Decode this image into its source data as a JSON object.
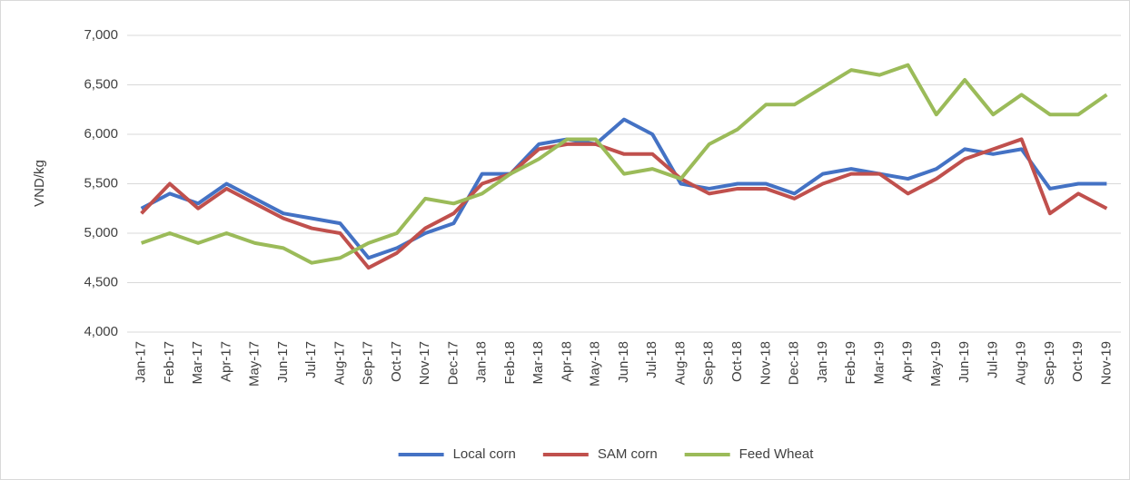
{
  "chart_data": {
    "type": "line",
    "y_label": "VND/kg",
    "categories": [
      "Jan-17",
      "Feb-17",
      "Mar-17",
      "Apr-17",
      "May-17",
      "Jun-17",
      "Jul-17",
      "Aug-17",
      "Sep-17",
      "Oct-17",
      "Nov-17",
      "Dec-17",
      "Jan-18",
      "Feb-18",
      "Mar-18",
      "Apr-18",
      "May-18",
      "Jun-18",
      "Jul-18",
      "Aug-18",
      "Sep-18",
      "Oct-18",
      "Nov-18",
      "Dec-18",
      "Jan-19",
      "Feb-19",
      "Mar-19",
      "Apr-19",
      "May-19",
      "Jun-19",
      "Jul-19",
      "Aug-19",
      "Sep-19",
      "Oct-19",
      "Nov-19"
    ],
    "series": [
      {
        "name": "Local corn",
        "color": "#4472c4",
        "values": [
          5250,
          5400,
          5300,
          5500,
          5350,
          5200,
          5150,
          5100,
          4750,
          4850,
          5000,
          5100,
          5600,
          5600,
          5900,
          5950,
          5900,
          6150,
          6000,
          5500,
          5450,
          5500,
          5500,
          5400,
          5600,
          5650,
          5600,
          5550,
          5650,
          5850,
          5800,
          5850,
          5450,
          5500,
          5500
        ]
      },
      {
        "name": "SAM corn",
        "color": "#c0504d",
        "values": [
          5200,
          5500,
          5250,
          5450,
          5300,
          5150,
          5050,
          5000,
          4650,
          4800,
          5050,
          5200,
          5500,
          5600,
          5850,
          5900,
          5900,
          5800,
          5800,
          5550,
          5400,
          5450,
          5450,
          5350,
          5500,
          5600,
          5600,
          5400,
          5550,
          5750,
          5850,
          5950,
          5200,
          5400,
          5250
        ]
      },
      {
        "name": "Feed Wheat",
        "color": "#9bbb59",
        "values": [
          4900,
          5000,
          4900,
          5000,
          4900,
          4850,
          4700,
          4750,
          4900,
          5000,
          5350,
          5300,
          5400,
          5600,
          5750,
          5950,
          5950,
          5600,
          5650,
          5550,
          5900,
          6050,
          6300,
          6300,
          6475,
          6650,
          6600,
          6700,
          6200,
          6550,
          6200,
          6400,
          6200,
          6200,
          6400
        ]
      }
    ],
    "ylim": [
      4000,
      7000
    ],
    "yticks": [
      {
        "value": 4000,
        "label": "4,000"
      },
      {
        "value": 4500,
        "label": "4,500"
      },
      {
        "value": 5000,
        "label": "5,000"
      },
      {
        "value": 5500,
        "label": "5,500"
      },
      {
        "value": 6000,
        "label": "6,000"
      },
      {
        "value": 6500,
        "label": "6,500"
      },
      {
        "value": 7000,
        "label": "7,000"
      }
    ],
    "grid": true,
    "legend": "bottom"
  }
}
